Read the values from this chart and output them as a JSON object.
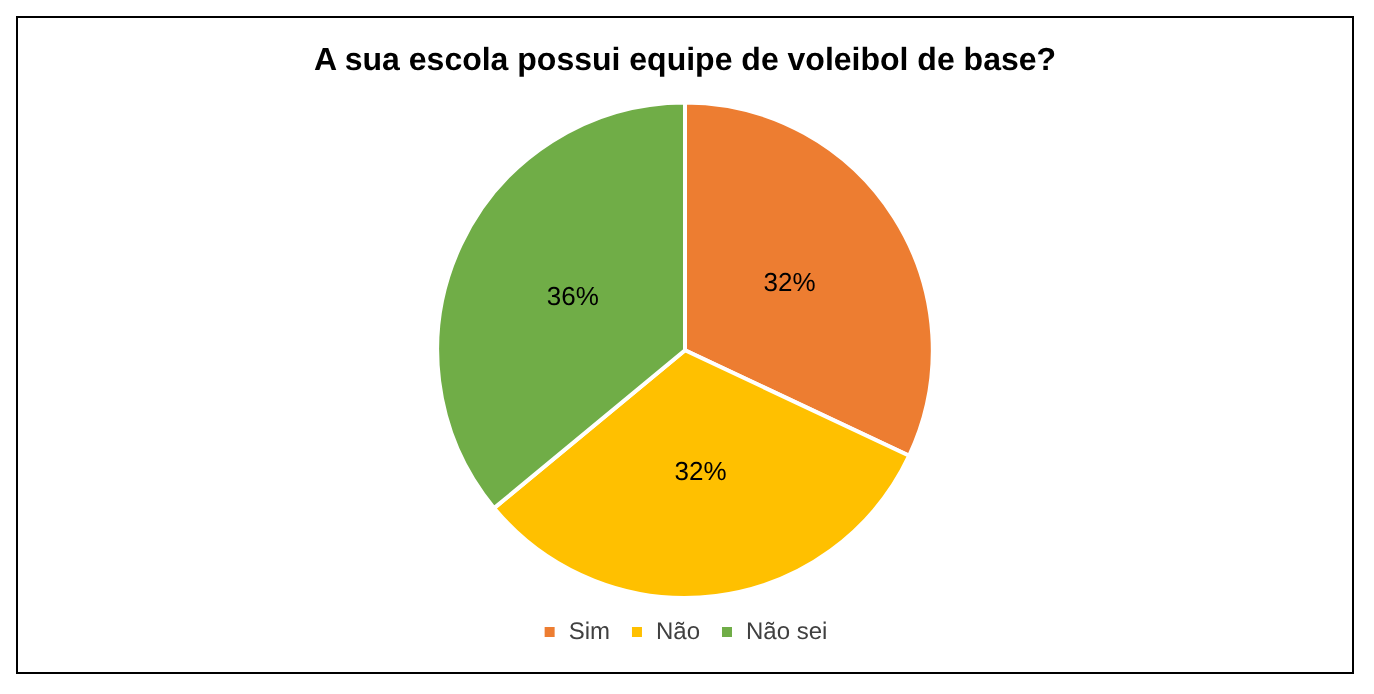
{
  "chart_data": {
    "type": "pie",
    "title": "A sua escola possui equipe de voleibol de base?",
    "categories": [
      "Sim",
      "Não",
      "Não sei"
    ],
    "values": [
      32,
      32,
      36
    ],
    "colors": [
      "#ed7d31",
      "#ffc000",
      "#70ad47"
    ],
    "value_labels": [
      "32%",
      "32%",
      "36%"
    ],
    "legend": "bottom"
  }
}
